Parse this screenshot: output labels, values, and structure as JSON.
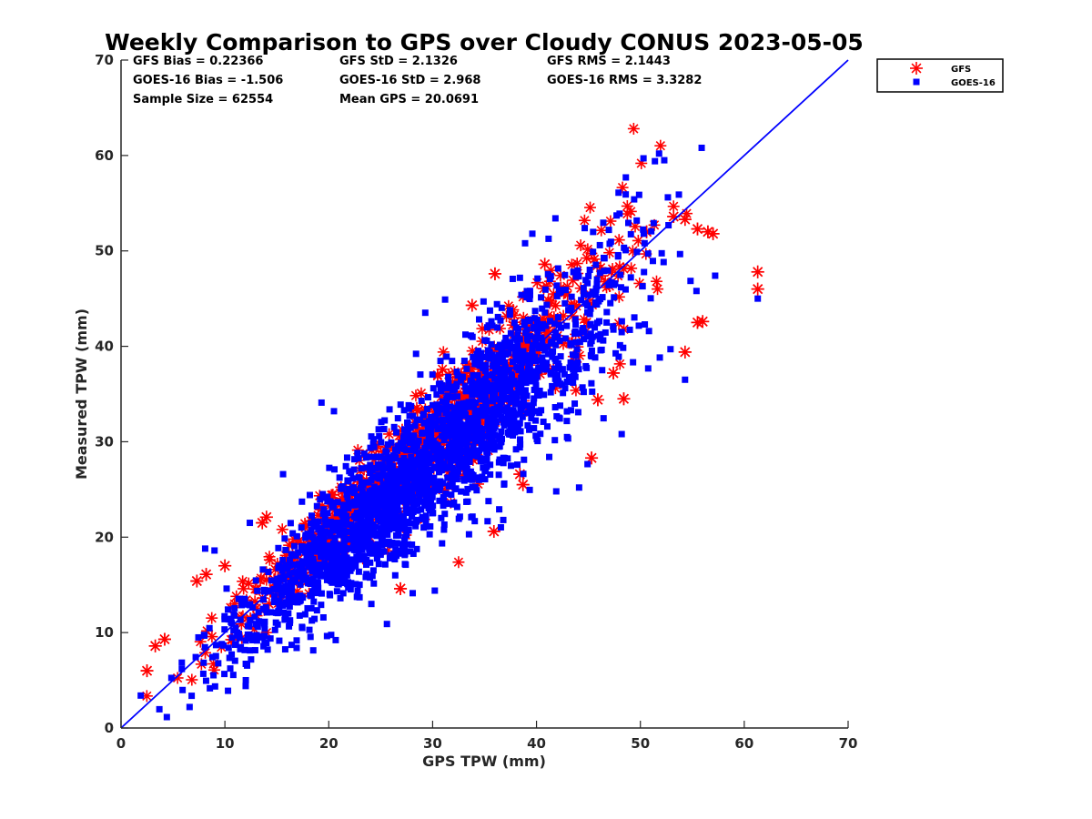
{
  "chart_data": {
    "type": "scatter",
    "title": "Weekly Comparison to GPS over Cloudy CONUS 2023-05-05",
    "xlabel": "GPS TPW (mm)",
    "ylabel": "Measured TPW (mm)",
    "xlim": [
      0,
      70
    ],
    "ylim": [
      0,
      70
    ],
    "xticks": [
      0,
      10,
      20,
      30,
      40,
      50,
      60,
      70
    ],
    "yticks": [
      0,
      10,
      20,
      30,
      40,
      50,
      60,
      70
    ],
    "grid": false,
    "legend_position": "outside-top-right",
    "stats": [
      [
        "GFS Bias = 0.22366",
        "GFS StD = 2.1326",
        "GFS RMS = 2.1443"
      ],
      [
        "GOES-16 Bias = -1.506",
        "GOES-16 StD = 2.968",
        "GOES-16 RMS = 3.3282"
      ],
      [
        "Sample Size = 62554",
        "Mean GPS = 20.0691",
        ""
      ]
    ],
    "reference_line": {
      "x": [
        0,
        70
      ],
      "y": [
        0,
        70
      ],
      "color": "#0000ff"
    },
    "series": [
      {
        "name": "GFS",
        "marker": "asterisk",
        "color": "#ff0000",
        "cloud": {
          "x_range": [
            2,
            57
          ],
          "slope": 1.0,
          "intercept": 0.22,
          "spread": 2.1,
          "count": 900
        },
        "outliers": [
          [
            61.3,
            47.8
          ],
          [
            61.3,
            46.0
          ],
          [
            57.0,
            51.8
          ],
          [
            56.5,
            52.0
          ],
          [
            55.5,
            52.3
          ],
          [
            53.2,
            53.6
          ],
          [
            54.3,
            53.3
          ],
          [
            55.5,
            42.5
          ],
          [
            56.0,
            42.6
          ],
          [
            54.3,
            39.4
          ],
          [
            45.3,
            28.3
          ],
          [
            38.7,
            25.5
          ],
          [
            35.9,
            20.6
          ],
          [
            47.4,
            37.2
          ],
          [
            48.4,
            34.5
          ],
          [
            26.9,
            14.6
          ],
          [
            13.6,
            21.5
          ],
          [
            14.0,
            22.1
          ],
          [
            2.5,
            6.0
          ],
          [
            3.3,
            8.6
          ],
          [
            4.2,
            9.3
          ],
          [
            7.3,
            15.4
          ],
          [
            8.2,
            16.1
          ],
          [
            10.0,
            17.0
          ],
          [
            33.8,
            44.3
          ],
          [
            36.0,
            47.6
          ],
          [
            40.8,
            48.6
          ],
          [
            50.6,
            52.0
          ],
          [
            38.4,
            26.6
          ],
          [
            45.9,
            34.4
          ]
        ]
      },
      {
        "name": "GOES-16",
        "marker": "square",
        "color": "#0000ff",
        "cloud": {
          "x_range": [
            2,
            57
          ],
          "slope": 0.97,
          "intercept": -1.0,
          "spread": 2.9,
          "count": 2300
        },
        "outliers": [
          [
            55.9,
            60.8
          ],
          [
            51.8,
            60.2
          ],
          [
            50.3,
            59.7
          ],
          [
            52.3,
            59.5
          ],
          [
            51.4,
            59.4
          ],
          [
            48.6,
            57.7
          ],
          [
            47.9,
            56.1
          ],
          [
            49.4,
            55.4
          ],
          [
            48.0,
            53.9
          ],
          [
            38.9,
            50.8
          ],
          [
            39.6,
            51.8
          ],
          [
            34.9,
            44.7
          ],
          [
            31.2,
            44.9
          ],
          [
            61.3,
            45.0
          ],
          [
            57.2,
            47.4
          ],
          [
            55.4,
            45.8
          ],
          [
            54.3,
            36.5
          ],
          [
            52.9,
            39.7
          ],
          [
            48.2,
            30.8
          ],
          [
            44.1,
            25.2
          ],
          [
            41.9,
            24.8
          ],
          [
            36.8,
            21.8
          ],
          [
            25.6,
            10.9
          ],
          [
            24.1,
            13.0
          ],
          [
            6.6,
            2.2
          ],
          [
            1.9,
            3.4
          ],
          [
            10.3,
            3.9
          ],
          [
            12.0,
            4.4
          ],
          [
            26.4,
            16.0
          ],
          [
            33.5,
            20.3
          ],
          [
            29.4,
            21.1
          ],
          [
            19.3,
            34.1
          ],
          [
            20.5,
            33.2
          ],
          [
            15.6,
            26.6
          ],
          [
            8.1,
            18.8
          ],
          [
            9.0,
            18.6
          ],
          [
            12.4,
            21.5
          ],
          [
            43.6,
            47.8
          ],
          [
            46.1,
            50.6
          ],
          [
            40.1,
            47.1
          ]
        ]
      }
    ]
  }
}
